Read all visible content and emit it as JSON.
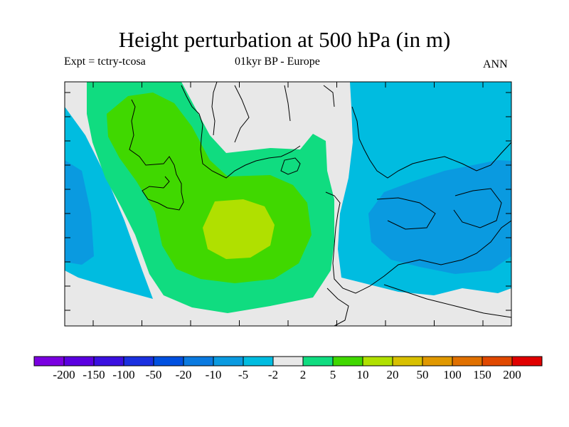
{
  "header": {
    "title": "Height perturbation at 500 hPa (in m)",
    "expt": "Expt = tctry-tcosa",
    "period_region": "01kyr BP - Europe",
    "season": "ANN"
  },
  "colorbar": {
    "colors": [
      "#7a00e0",
      "#5a00e0",
      "#3a10e0",
      "#1a30e0",
      "#0050e0",
      "#0a7ae0",
      "#0a9ae0",
      "#00bce0",
      "#e8e8e8",
      "#10dc80",
      "#40d800",
      "#b0e000",
      "#d8c000",
      "#e09800",
      "#e07000",
      "#e04800",
      "#e00000"
    ],
    "labels": [
      "-200",
      "-150",
      "-100",
      "-50",
      "-20",
      "-10",
      "-5",
      "-2",
      "2",
      "5",
      "10",
      "20",
      "50",
      "100",
      "150",
      "200"
    ]
  },
  "map": {
    "background_color": "#e8e8e8",
    "fields": [
      "#00bce0",
      "#0a9ae0",
      "#10dc80",
      "#40d800",
      "#b0e000"
    ]
  }
}
